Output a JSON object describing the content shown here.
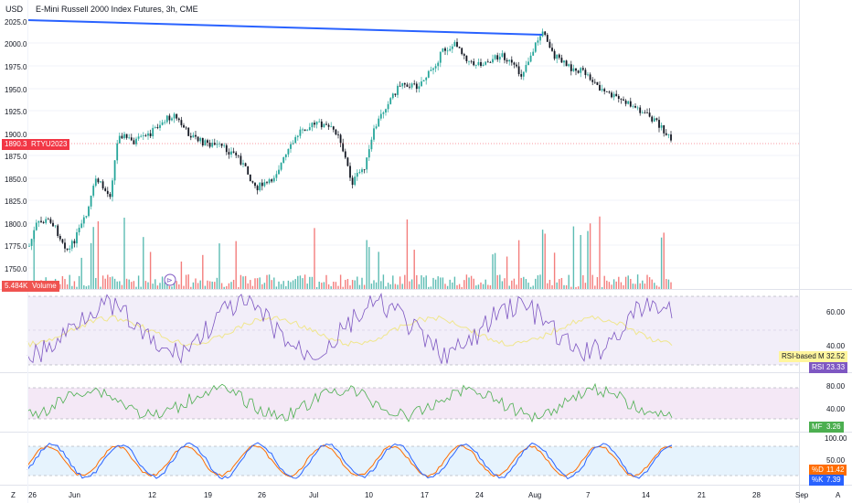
{
  "header": {
    "currency": "USD",
    "title": "E-Mini Russell 2000 Index Futures, 3h, CME"
  },
  "price_axis": {
    "ticks": [
      "2025.0",
      "2000.0",
      "1975.0",
      "1950.0",
      "1925.0",
      "1900.0",
      "1875.0",
      "1850.0",
      "1825.0",
      "1800.0",
      "1775.0",
      "1750.0"
    ],
    "last_price": "1890.3",
    "symbol_tag": "RTYU2023",
    "volume_value": "5.484K",
    "volume_label": "Volume"
  },
  "rsi_panel": {
    "ticks": [
      "60.00",
      "40.00"
    ],
    "ma_label": "RSI-based MA",
    "ma_value": "32.52",
    "rsi_label": "RSI",
    "rsi_value": "23.33"
  },
  "mf_panel": {
    "ticks": [
      "80.00",
      "40.00"
    ],
    "mf_label": "MF",
    "mf_value": "3.26"
  },
  "stoch_panel": {
    "ticks": [
      "100.00",
      "50.00"
    ],
    "d_label": "%D",
    "d_value": "11.42",
    "k_label": "%K",
    "k_value": "7.39"
  },
  "time_axis": {
    "labels": [
      "26",
      "Jun",
      "12",
      "19",
      "26",
      "Jul",
      "10",
      "17",
      "24",
      "Aug",
      "7",
      "14",
      "21",
      "28",
      "Sep"
    ]
  },
  "footer": {
    "left_btn": "Z",
    "right_btn": "A",
    "replay_glyph": "⊳"
  },
  "colors": {
    "up": "#26a69a",
    "down": "#131722",
    "trendline": "#2962ff",
    "last_price": "#f23645",
    "rsi": "#7e57c2",
    "rsi_ma": "#f0e68c",
    "mf": "#4caf50",
    "stoch_k": "#2962ff",
    "stoch_d": "#ff6d00",
    "vol_up": "#26a69a",
    "vol_down": "#ef5350"
  }
}
